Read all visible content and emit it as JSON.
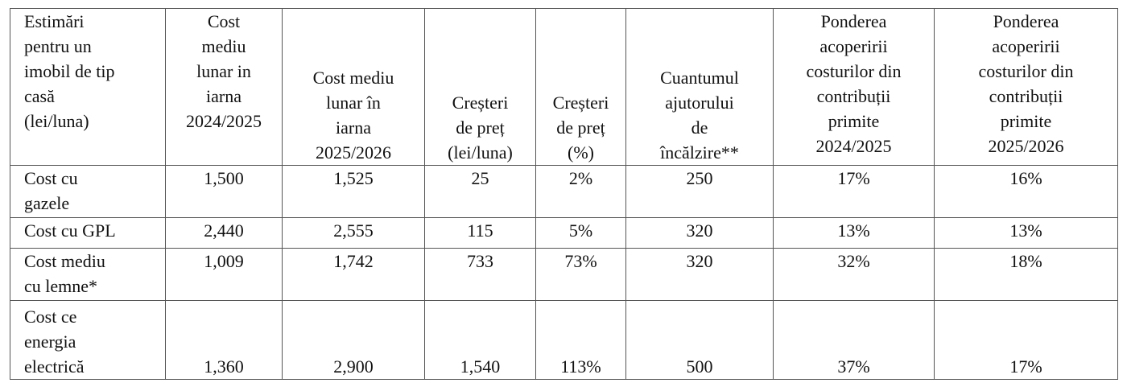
{
  "table": {
    "header": [
      "Estimări\npentru un\nimobil de tip\ncasă\n(lei/luna)",
      "Cost\nmediu\nlunar in\niarna\n2024/2025",
      "Cost mediu\nlunar în\niarna\n2025/2026",
      "Creșteri\nde preț\n(lei/luna)",
      "Creșteri\nde preț\n(%)",
      "Cuantumul\najutorului\nde\nîncălzire**",
      "Ponderea\nacoperirii\ncosturilor din\ncontribuții\nprimite\n2024/2025",
      "Ponderea\nacoperirii\ncosturilor din\ncontribuții\nprimite\n2025/2026"
    ],
    "rows": [
      [
        "Cost cu\ngazele",
        "1,500",
        "1,525",
        "25",
        "2%",
        "250",
        "17%",
        "16%"
      ],
      [
        "Cost cu GPL",
        "2,440",
        "2,555",
        "115",
        "5%",
        "320",
        "13%",
        "13%"
      ],
      [
        "Cost mediu\ncu lemne*",
        "1,009",
        "1,742",
        "733",
        "73%",
        "320",
        "32%",
        "18%"
      ],
      [
        "Cost ce\nenergia\nelectrică",
        "1,360",
        "2,900",
        "1,540",
        "113%",
        "500",
        "37%",
        "17%"
      ]
    ]
  }
}
